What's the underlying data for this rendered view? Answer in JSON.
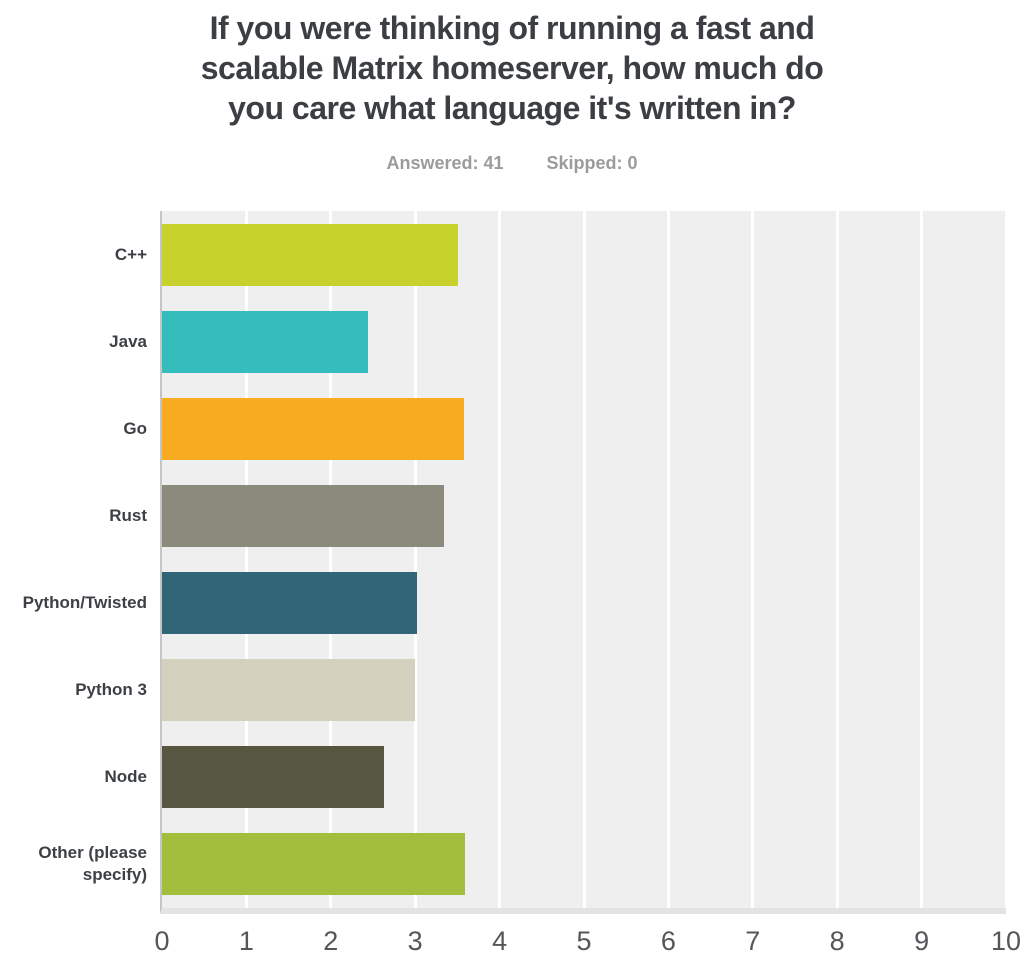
{
  "header": {
    "title_lines": [
      "If you were thinking of running a fast and",
      "scalable Matrix homeserver, how much do",
      "you care what language it's written in?"
    ],
    "stats": {
      "answered": "Answered: 41",
      "skipped": "Skipped: 0"
    }
  },
  "chart_data": {
    "type": "bar",
    "orientation": "horizontal",
    "title": "If you were thinking of running a fast and scalable Matrix homeserver, how much do you care what language it's written in?",
    "answered": 41,
    "skipped": 0,
    "categories": [
      "C++",
      "Java",
      "Go",
      "Rust",
      "Python/Twisted",
      "Python 3",
      "Node",
      "Other (please specify)"
    ],
    "values": [
      3.51,
      2.44,
      3.58,
      3.34,
      3.02,
      3.0,
      2.63,
      3.59
    ],
    "bar_colors": [
      "#c8d22d",
      "#35bcbd",
      "#f6ab20",
      "#8b8b7d",
      "#316577",
      "#d3d0be",
      "#575641",
      "#a3bd3c"
    ],
    "xlabel": "",
    "ylabel": "",
    "xlim": [
      0,
      10
    ],
    "x_ticks": [
      "0",
      "1",
      "2",
      "3",
      "4",
      "5",
      "6",
      "7",
      "8",
      "9",
      "10"
    ],
    "grid": true,
    "legend": "none",
    "plot_background": "#efefef",
    "gridline_color": "#ffffff",
    "axis_line_color": "#c5c5c5"
  }
}
